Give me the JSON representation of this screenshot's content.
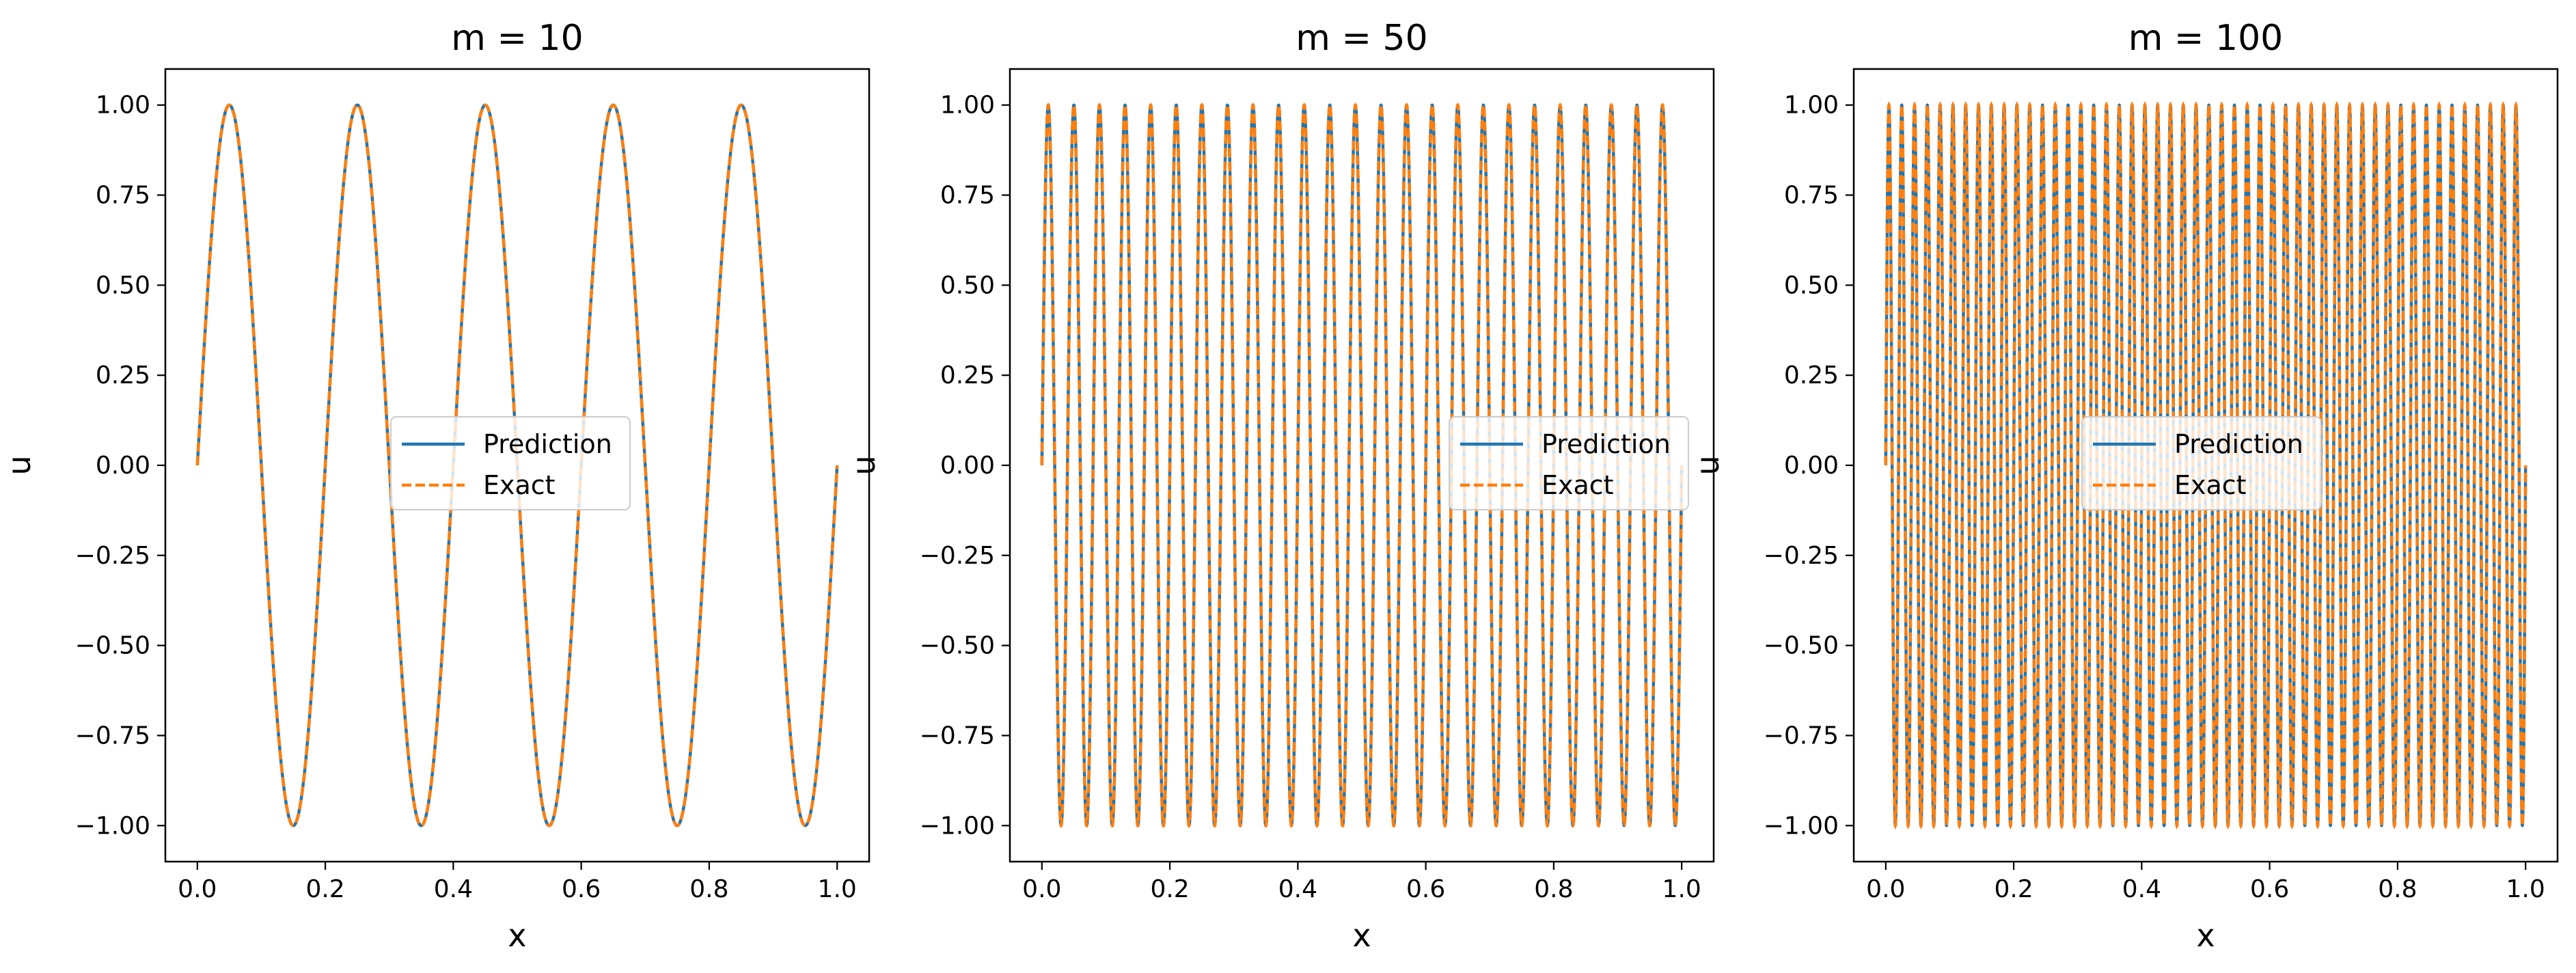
{
  "figure": {
    "description_hidden": false
  },
  "colors": {
    "prediction": "#1f77b4",
    "exact": "#ff7f0e",
    "axes": "#000000",
    "background": "#ffffff"
  },
  "chart_data": [
    {
      "type": "line",
      "title": "m = 10",
      "xlabel": "x",
      "ylabel": "u",
      "function": "sin(m*pi*x)",
      "m": 10,
      "xlim": [
        -0.05,
        1.05
      ],
      "ylim": [
        -1.1,
        1.1
      ],
      "x_ticks": [
        0.0,
        0.2,
        0.4,
        0.6,
        0.8,
        1.0
      ],
      "x_tick_labels": [
        "0.0",
        "0.2",
        "0.4",
        "0.6",
        "0.8",
        "1.0"
      ],
      "y_ticks": [
        1.0,
        0.75,
        0.5,
        0.25,
        0.0,
        -0.25,
        -0.5,
        -0.75,
        -1.0
      ],
      "y_tick_labels": [
        "1.00",
        "0.75",
        "0.50",
        "0.25",
        "0.00",
        "−0.25",
        "−0.50",
        "−0.75",
        "−1.00"
      ],
      "legend": {
        "placement": "center",
        "entries": [
          "Prediction",
          "Exact"
        ]
      },
      "series": [
        {
          "name": "Prediction",
          "style": "solid",
          "x_range": [
            0.0,
            1.0
          ]
        },
        {
          "name": "Exact",
          "style": "dashed",
          "x_range": [
            0.0,
            1.0
          ]
        }
      ]
    },
    {
      "type": "line",
      "title": "m = 50",
      "xlabel": "x",
      "ylabel": "u",
      "function": "sin(m*pi*x)",
      "m": 50,
      "xlim": [
        -0.05,
        1.05
      ],
      "ylim": [
        -1.1,
        1.1
      ],
      "x_ticks": [
        0.0,
        0.2,
        0.4,
        0.6,
        0.8,
        1.0
      ],
      "x_tick_labels": [
        "0.0",
        "0.2",
        "0.4",
        "0.6",
        "0.8",
        "1.0"
      ],
      "y_ticks": [
        1.0,
        0.75,
        0.5,
        0.25,
        0.0,
        -0.25,
        -0.5,
        -0.75,
        -1.0
      ],
      "y_tick_labels": [
        "1.00",
        "0.75",
        "0.50",
        "0.25",
        "0.00",
        "−0.25",
        "−0.50",
        "−0.75",
        "−1.00"
      ],
      "legend": {
        "placement": "center-right",
        "entries": [
          "Prediction",
          "Exact"
        ]
      },
      "series": [
        {
          "name": "Prediction",
          "style": "solid",
          "x_range": [
            0.0,
            1.0
          ]
        },
        {
          "name": "Exact",
          "style": "dashed",
          "x_range": [
            0.0,
            1.0
          ]
        }
      ]
    },
    {
      "type": "line",
      "title": "m = 100",
      "xlabel": "x",
      "ylabel": "u",
      "function": "sin(m*pi*x)",
      "m": 100,
      "xlim": [
        -0.05,
        1.05
      ],
      "ylim": [
        -1.1,
        1.1
      ],
      "x_ticks": [
        0.0,
        0.2,
        0.4,
        0.6,
        0.8,
        1.0
      ],
      "x_tick_labels": [
        "0.0",
        "0.2",
        "0.4",
        "0.6",
        "0.8",
        "1.0"
      ],
      "y_ticks": [
        1.0,
        0.75,
        0.5,
        0.25,
        0.0,
        -0.25,
        -0.5,
        -0.75,
        -1.0
      ],
      "y_tick_labels": [
        "1.00",
        "0.75",
        "0.50",
        "0.25",
        "0.00",
        "−0.25",
        "−0.50",
        "−0.75",
        "−1.00"
      ],
      "legend": {
        "placement": "center",
        "entries": [
          "Prediction",
          "Exact"
        ]
      },
      "series": [
        {
          "name": "Prediction",
          "style": "solid",
          "x_range": [
            0.0,
            1.0
          ]
        },
        {
          "name": "Exact",
          "style": "dashed",
          "x_range": [
            0.0,
            1.0
          ]
        }
      ]
    }
  ]
}
